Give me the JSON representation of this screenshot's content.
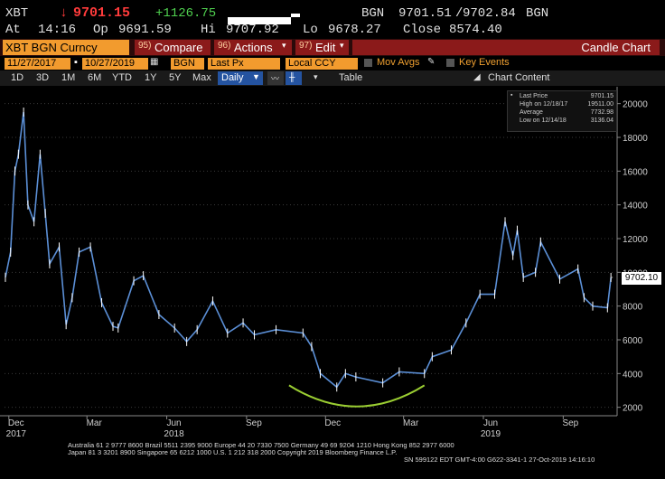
{
  "ticker": {
    "symbol": "XBT",
    "direction_arrow": "↓",
    "last": "9701.15",
    "change": "+1126.75",
    "source": "BGN",
    "bid": "9701.51",
    "ask": "9702.84",
    "source2": "BGN"
  },
  "quote": {
    "at_label": "At",
    "time": "14:16",
    "op_label": "Op",
    "open": "9691.59",
    "hi_label": "Hi",
    "high": "9707.92",
    "lo_label": "Lo",
    "low": "9678.27",
    "close_label": "Close",
    "close": "8574.40"
  },
  "menubar": {
    "security": "XBT BGN Curncy",
    "compare_num": "95)",
    "compare": "Compare",
    "actions_num": "96)",
    "actions": "Actions",
    "edit_num": "97)",
    "edit": "Edit",
    "title": "Candle Chart"
  },
  "controls": {
    "start_date": "11/27/2017",
    "end_date": "10/27/2019",
    "source": "BGN",
    "field": "Last Px",
    "currency": "Local CCY",
    "mov_avgs": "Mov Avgs",
    "key_events": "Key Events",
    "periods": [
      "1D",
      "3D",
      "1M",
      "6M",
      "YTD",
      "1Y",
      "5Y",
      "Max"
    ],
    "frequency": "Daily",
    "table": "Table",
    "chart_content": "Chart Content"
  },
  "legend": {
    "rows": [
      {
        "label": "Last Price",
        "value": "9701.15"
      },
      {
        "label": "High on 12/18/17",
        "value": "19511.00"
      },
      {
        "label": "Average",
        "value": "7732.98"
      },
      {
        "label": "Low on 12/14/18",
        "value": "3136.04"
      }
    ]
  },
  "price_tag": "9702.10",
  "colors": {
    "price_line": "#5b8fd6",
    "candle": "#ffffff",
    "curve": "#9acd32",
    "menu_bg": "#8b1a1a",
    "orange": "#f29b2e"
  },
  "chart_data": {
    "type": "line",
    "title": "",
    "ylim": [
      2000,
      21000
    ],
    "yticks": [
      2000,
      4000,
      6000,
      8000,
      10000,
      12000,
      14000,
      16000,
      18000,
      20000
    ],
    "x_labels": [
      {
        "text": "Dec",
        "sub": "2017",
        "date": "2017-12"
      },
      {
        "text": "Mar",
        "sub": "",
        "date": "2018-03"
      },
      {
        "text": "Jun",
        "sub": "2018",
        "date": "2018-06"
      },
      {
        "text": "Sep",
        "sub": "",
        "date": "2018-09"
      },
      {
        "text": "Dec",
        "sub": "",
        "date": "2018-12"
      },
      {
        "text": "Mar",
        "sub": "",
        "date": "2019-03"
      },
      {
        "text": "Jun",
        "sub": "2019",
        "date": "2019-06"
      },
      {
        "text": "Sep",
        "sub": "",
        "date": "2019-09"
      }
    ],
    "series": [
      {
        "points": [
          [
            "2017-11-27",
            9700
          ],
          [
            "2017-12-03",
            11200
          ],
          [
            "2017-12-08",
            16000
          ],
          [
            "2017-12-12",
            17000
          ],
          [
            "2017-12-18",
            19500
          ],
          [
            "2017-12-23",
            14000
          ],
          [
            "2017-12-30",
            13000
          ],
          [
            "2018-01-06",
            17000
          ],
          [
            "2018-01-12",
            13500
          ],
          [
            "2018-01-17",
            10500
          ],
          [
            "2018-01-28",
            11500
          ],
          [
            "2018-02-05",
            6900
          ],
          [
            "2018-02-12",
            8500
          ],
          [
            "2018-02-20",
            11200
          ],
          [
            "2018-03-05",
            11500
          ],
          [
            "2018-03-18",
            8200
          ],
          [
            "2018-03-31",
            6800
          ],
          [
            "2018-04-06",
            6700
          ],
          [
            "2018-04-24",
            9500
          ],
          [
            "2018-05-05",
            9800
          ],
          [
            "2018-05-23",
            7500
          ],
          [
            "2018-06-10",
            6700
          ],
          [
            "2018-06-24",
            5900
          ],
          [
            "2018-07-06",
            6600
          ],
          [
            "2018-07-24",
            8300
          ],
          [
            "2018-08-10",
            6400
          ],
          [
            "2018-08-28",
            7000
          ],
          [
            "2018-09-10",
            6300
          ],
          [
            "2018-10-05",
            6600
          ],
          [
            "2018-11-05",
            6400
          ],
          [
            "2018-11-15",
            5600
          ],
          [
            "2018-11-25",
            4000
          ],
          [
            "2018-12-14",
            3200
          ],
          [
            "2018-12-24",
            4000
          ],
          [
            "2019-01-05",
            3800
          ],
          [
            "2019-02-05",
            3450
          ],
          [
            "2019-02-24",
            4100
          ],
          [
            "2019-03-25",
            4000
          ],
          [
            "2019-04-03",
            5000
          ],
          [
            "2019-04-25",
            5400
          ],
          [
            "2019-05-12",
            7000
          ],
          [
            "2019-05-28",
            8700
          ],
          [
            "2019-06-14",
            8700
          ],
          [
            "2019-06-26",
            13000
          ],
          [
            "2019-07-05",
            11000
          ],
          [
            "2019-07-10",
            12500
          ],
          [
            "2019-07-17",
            9700
          ],
          [
            "2019-07-31",
            10000
          ],
          [
            "2019-08-06",
            11800
          ],
          [
            "2019-08-28",
            9600
          ],
          [
            "2019-09-18",
            10200
          ],
          [
            "2019-09-25",
            8500
          ],
          [
            "2019-10-05",
            8000
          ],
          [
            "2019-10-22",
            7900
          ],
          [
            "2019-10-26",
            9700
          ]
        ]
      }
    ]
  },
  "footer": {
    "line1": "Australia 61 2 9777 8600 Brazil 5511 2395 9000 Europe 44 20 7330 7500 Germany 49 69 9204 1210 Hong Kong 852 2977 6000",
    "line2": "Japan 81 3 3201 8900        Singapore 65 6212 1000        U.S. 1 212 318 2000        Copyright 2019 Bloomberg Finance L.P.",
    "line3": "SN 599122 EDT  GMT-4:00 G622-3341-1 27-Oct-2019 14:16:10"
  }
}
